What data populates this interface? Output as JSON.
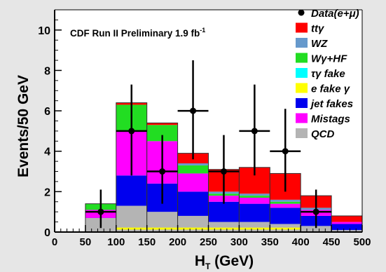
{
  "chart_data": {
    "type": "bar",
    "stacked": true,
    "title": "",
    "annotation": "CDF Run II Preliminary 1.9 fb",
    "annotation_sup": "-1",
    "xlabel_main": "H",
    "xlabel_sub": "T",
    "xlabel_rest": " (GeV)",
    "ylabel": "Events/50 GeV",
    "xlim": [
      0,
      500
    ],
    "ylim": [
      0,
      11
    ],
    "x_ticks": [
      "0",
      "50",
      "100",
      "150",
      "200",
      "250",
      "300",
      "350",
      "400",
      "450",
      "500"
    ],
    "y_ticks": [
      "0",
      "2",
      "4",
      "6",
      "8",
      "10"
    ],
    "bin_edges": [
      50,
      100,
      150,
      200,
      250,
      300,
      350,
      400,
      450,
      500
    ],
    "series": [
      {
        "name": "QCD",
        "color": "#b4b4b4",
        "values": [
          0.7,
          1.3,
          1.0,
          0.8,
          0.5,
          0.5,
          0.4,
          0.3,
          0.1
        ]
      },
      {
        "name": "Mistags",
        "color": "#ff00ff",
        "values": [
          0.0,
          0.0,
          0.0,
          0.0,
          0.0,
          0.0,
          0.0,
          0.0,
          0.0
        ]
      },
      {
        "name": "jet fakes",
        "color": "#0000ee",
        "values": [
          0.4,
          1.5,
          1.4,
          1.2,
          1.0,
          0.9,
          0.8,
          0.5,
          0.3
        ]
      },
      {
        "name": "e fake γ",
        "color": "#ffff00",
        "values": [
          0.0,
          0.0,
          0.0,
          0.0,
          0.0,
          0.0,
          0.0,
          0.0,
          0.0
        ]
      },
      {
        "name": "τγ fake",
        "color": "#00ffff",
        "values": [
          0.0,
          0.0,
          0.0,
          0.0,
          0.0,
          0.0,
          0.0,
          0.0,
          0.0
        ]
      },
      {
        "name": "Wγ+HF",
        "color": "#22dd22",
        "values": [
          0.3,
          1.3,
          0.8,
          0.4,
          0.1,
          0.1,
          0.1,
          0.0,
          0.0
        ]
      },
      {
        "name": "WZ",
        "color": "#6699cc",
        "values": [
          0.0,
          0.0,
          0.0,
          0.1,
          0.1,
          0.1,
          0.1,
          0.1,
          0.0
        ]
      },
      {
        "name": "ttγ",
        "color": "#ff0000",
        "values": [
          0.0,
          0.1,
          0.1,
          0.5,
          1.1,
          1.3,
          1.3,
          0.6,
          0.3
        ]
      }
    ],
    "overlay": {
      "QCD": [
        0.0,
        0.0,
        0.0,
        0.0,
        0.0,
        0.0,
        0.0,
        0.0,
        0.0
      ],
      "Mistags_band": [
        [
          0.7,
          1.1
        ],
        [
          2.8,
          5.0
        ],
        [
          2.4,
          4.5
        ],
        [
          2.0,
          2.9
        ],
        [
          1.5,
          1.8
        ],
        [
          1.4,
          1.7
        ],
        [
          1.2,
          1.4
        ],
        [
          0.8,
          1.1
        ],
        [
          0.4,
          0.5
        ]
      ],
      "e_fake_band": [
        [
          0.0,
          0.0
        ],
        [
          0.12,
          0.22
        ],
        [
          0.12,
          0.22
        ],
        [
          0.12,
          0.22
        ],
        [
          0.12,
          0.22
        ],
        [
          0.12,
          0.22
        ],
        [
          0.12,
          0.22
        ],
        [
          0.0,
          0.0
        ],
        [
          0.0,
          0.0
        ]
      ]
    },
    "data_points": {
      "name": "Data(e+μ)",
      "x": [
        75,
        125,
        175,
        225,
        275,
        325,
        375,
        425
      ],
      "y": [
        1,
        5,
        3,
        6,
        3,
        5,
        4,
        1
      ],
      "yerr_low": [
        0.8,
        2.2,
        1.6,
        2.4,
        1.6,
        2.2,
        2.0,
        0.8
      ],
      "yerr_high": [
        1.1,
        2.3,
        1.8,
        2.5,
        1.8,
        2.3,
        2.1,
        1.1
      ],
      "xerr": 25
    },
    "legend": [
      {
        "label": "Data(e+μ)",
        "kind": "marker",
        "color": "#000000"
      },
      {
        "label": "ttγ",
        "kind": "box",
        "color": "#ff0000"
      },
      {
        "label": "WZ",
        "kind": "box",
        "color": "#6699cc"
      },
      {
        "label": "Wγ+HF",
        "kind": "box",
        "color": "#22dd22"
      },
      {
        "label": "τγ fake",
        "kind": "box",
        "color": "#00ffff"
      },
      {
        "label": "e fake γ",
        "kind": "box",
        "color": "#ffff00"
      },
      {
        "label": "jet fakes",
        "kind": "box",
        "color": "#0000ee"
      },
      {
        "label": "Mistags",
        "kind": "box",
        "color": "#ff00ff"
      },
      {
        "label": "QCD",
        "kind": "box",
        "color": "#b4b4b4"
      }
    ],
    "legend_placement": "top-right",
    "grid": false
  }
}
